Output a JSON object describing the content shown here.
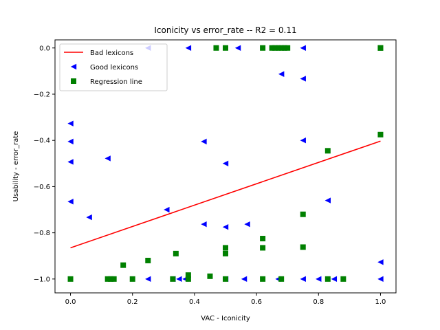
{
  "chart_data": {
    "type": "scatter",
    "title": "Iconicity  vs  error_rate -- R2 = 0.11",
    "xlabel": "VAC - Iconicity",
    "ylabel": "Usability - error_rate",
    "xlim": [
      -0.05,
      1.05
    ],
    "ylim": [
      -1.06,
      0.035
    ],
    "xticks": [
      0.0,
      0.2,
      0.4,
      0.6,
      0.8,
      1.0
    ],
    "xtick_labels": [
      "0.0",
      "0.2",
      "0.4",
      "0.6",
      "0.8",
      "1.0"
    ],
    "yticks": [
      0.0,
      -0.2,
      -0.4,
      -0.6,
      -0.8,
      -1.0
    ],
    "ytick_labels": [
      "0.0",
      "−0.2",
      "−0.4",
      "−0.6",
      "−0.8",
      "−1.0"
    ],
    "grid": false,
    "legend_position": "top-left",
    "series": [
      {
        "name": "Bad lexicons",
        "marker": "line",
        "color": "#ff0000",
        "x": [
          0.0,
          1.0
        ],
        "y": [
          -0.865,
          -0.403
        ]
      },
      {
        "name": "Good lexicons",
        "marker": "triangle-left",
        "color": "#0000ff",
        "x": [
          0.25,
          0.38,
          0.54,
          0.68,
          0.75,
          0.68,
          0.75,
          0.0,
          0.0,
          0.0,
          0.43,
          0.5,
          0.75,
          0.12,
          0.0,
          0.83,
          0.31,
          0.06,
          0.43,
          0.5,
          0.57,
          1.0,
          0.25,
          0.33,
          0.35,
          0.37,
          0.5,
          0.56,
          0.67,
          0.75,
          0.8,
          0.85,
          1.0
        ],
        "y": [
          0.0,
          0.0,
          0.0,
          0.0,
          0.0,
          -0.113,
          -0.133,
          -0.327,
          -0.405,
          -0.493,
          -0.405,
          -0.5,
          -0.4,
          -0.478,
          -0.665,
          -0.66,
          -0.7,
          -0.733,
          -0.763,
          -0.775,
          -0.763,
          -0.927,
          -1.0,
          -1.0,
          -1.0,
          -1.0,
          -1.0,
          -1.0,
          -1.0,
          -1.0,
          -1.0,
          -1.0,
          -1.0
        ]
      },
      {
        "name": "Regression line",
        "marker": "square",
        "color": "#008000",
        "x": [
          0.47,
          0.5,
          0.62,
          0.65,
          0.66,
          0.67,
          0.68,
          0.69,
          0.7,
          1.0,
          1.0,
          1.0,
          0.83,
          0.75,
          0.62,
          0.62,
          0.75,
          0.5,
          0.5,
          0.25,
          0.34,
          0.17,
          0.38,
          0.45,
          0.0,
          0.12,
          0.13,
          0.14,
          0.2,
          0.33,
          0.38,
          0.5,
          0.62,
          0.68,
          0.83,
          0.88
        ],
        "y": [
          0.0,
          0.0,
          0.0,
          0.0,
          0.0,
          0.0,
          0.0,
          0.0,
          0.0,
          0.0,
          0.0,
          -0.375,
          -0.445,
          -0.72,
          -0.825,
          -0.865,
          -0.862,
          -0.865,
          -0.89,
          -0.92,
          -0.89,
          -0.94,
          -0.983,
          -0.988,
          -1.0,
          -1.0,
          -1.0,
          -1.0,
          -1.0,
          -1.0,
          -1.0,
          -1.0,
          -1.0,
          -1.0,
          -1.0,
          -1.0
        ]
      }
    ]
  }
}
